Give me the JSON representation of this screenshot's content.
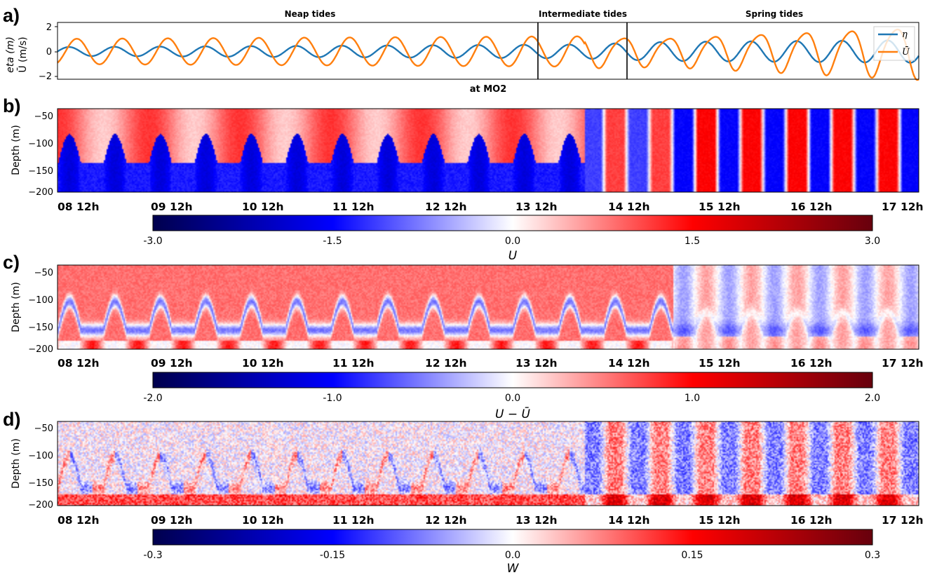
{
  "panel_labels": [
    "a)",
    "b)",
    "c)",
    "d)"
  ],
  "colors": {
    "eta": "#1f77b4",
    "ubar": "#ff7f0e",
    "cmap_neg_dark": "#00004d",
    "cmap_neg": "#0000ff",
    "cmap_zero": "#ffffff",
    "cmap_pos": "#ff0000",
    "cmap_pos_dark": "#67000d"
  },
  "chart_data": [
    {
      "type": "line",
      "panel": "a)",
      "ylabel": "eta (m)",
      "ylabel2": "Ū (m/s)",
      "ylim": [
        -2.2,
        2.3
      ],
      "yticks": [
        "2",
        "0",
        "−2"
      ],
      "regimes": [
        {
          "label": "Neap tides",
          "from_day": 0,
          "to_day": 6.0
        },
        {
          "label": "Intermediate tides",
          "from_day": 6.0,
          "to_day": 7.0
        },
        {
          "label": "Spring tides",
          "from_day": 7.0,
          "to_day": 9.8
        }
      ],
      "subtitle": "at MO2",
      "series": [
        {
          "name": "η",
          "amplitude_by_day": [
            [
              0,
              0.35
            ],
            [
              5.9,
              0.55
            ],
            [
              6.9,
              0.75
            ],
            [
              9.8,
              0.9
            ]
          ],
          "period_hours": 12.42
        },
        {
          "name": "Ū",
          "amplitude_by_day": [
            [
              0,
              1.0
            ],
            [
              5.9,
              1.2
            ],
            [
              6.9,
              1.1
            ],
            [
              9.8,
              2.0
            ]
          ],
          "period_hours": 12.42
        }
      ]
    },
    {
      "type": "heatmap",
      "panel": "b)",
      "ylabel": "Depth (m)",
      "yticks": [
        "−50",
        "−100",
        "−150",
        "−200"
      ],
      "xticks": [
        "08 12h",
        "09 12h",
        "10 12h",
        "11 12h",
        "12 12h",
        "13 12h",
        "14 12h",
        "15 12h",
        "16 12h",
        "17 12h"
      ],
      "colorbar": {
        "label": "U",
        "range": [
          -3.0,
          3.0
        ],
        "ticks": [
          "-3.0",
          "-1.5",
          "0.0",
          "1.5",
          "3.0"
        ]
      }
    },
    {
      "type": "heatmap",
      "panel": "c)",
      "ylabel": "Depth (m)",
      "yticks": [
        "−50",
        "−100",
        "−150",
        "−200"
      ],
      "xticks": [
        "08 12h",
        "09 12h",
        "10 12h",
        "11 12h",
        "12 12h",
        "13 12h",
        "14 12h",
        "15 12h",
        "16 12h",
        "17 12h"
      ],
      "colorbar": {
        "label": "U − Ū",
        "range": [
          -2.0,
          2.0
        ],
        "ticks": [
          "-2.0",
          "-1.0",
          "0.0",
          "1.0",
          "2.0"
        ]
      }
    },
    {
      "type": "heatmap",
      "panel": "d)",
      "ylabel": "Depth (m)",
      "yticks": [
        "−50",
        "−100",
        "−150",
        "−200"
      ],
      "xticks": [
        "08 12h",
        "09 12h",
        "10 12h",
        "11 12h",
        "12 12h",
        "13 12h",
        "14 12h",
        "15 12h",
        "16 12h",
        "17 12h"
      ],
      "colorbar": {
        "label": "W",
        "range": [
          -0.3,
          0.3
        ],
        "ticks": [
          "-0.3",
          "-0.15",
          "0.0",
          "0.15",
          "0.3"
        ]
      }
    }
  ]
}
